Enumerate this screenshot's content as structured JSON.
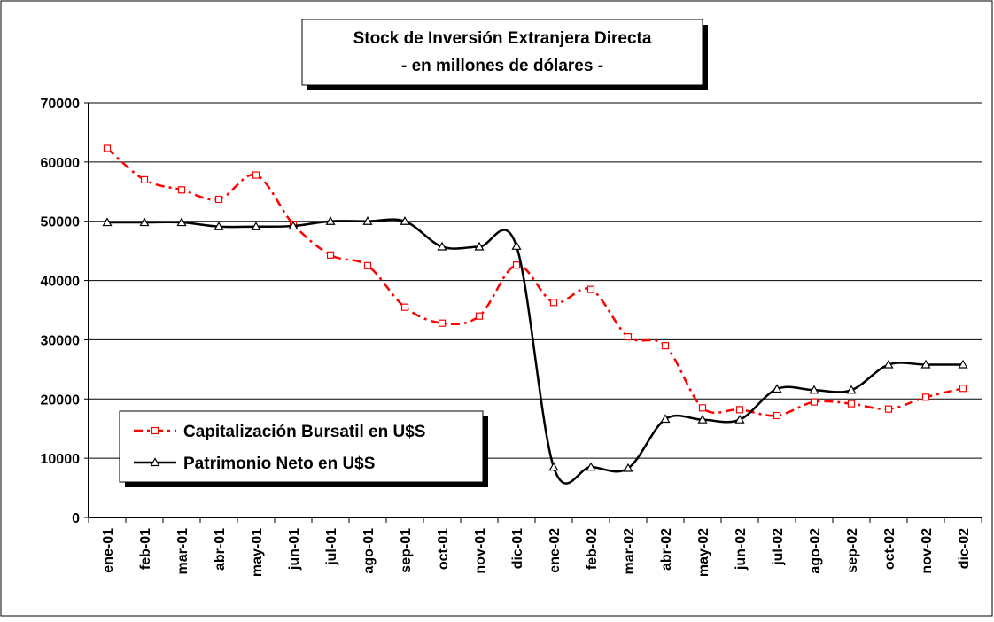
{
  "chart_data": {
    "type": "line",
    "title": "Stock de Inversión Extranjera Directa",
    "subtitle": "-  en millones de dólares  -",
    "categories": [
      "ene-01",
      "feb-01",
      "mar-01",
      "abr-01",
      "may-01",
      "jun-01",
      "jul-01",
      "ago-01",
      "sep-01",
      "oct-01",
      "nov-01",
      "dic-01",
      "ene-02",
      "feb-02",
      "mar-02",
      "abr-02",
      "may-02",
      "jun-02",
      "jul-02",
      "ago-02",
      "sep-02",
      "oct-02",
      "nov-02",
      "dic-02"
    ],
    "series": [
      {
        "name": "Capitalización Bursatil en U$S",
        "color": "#ff0000",
        "marker": "square",
        "dashed": true,
        "values": [
          62300,
          57000,
          55300,
          53700,
          57800,
          49500,
          44300,
          42500,
          35500,
          32800,
          34000,
          42600,
          36300,
          38500,
          30500,
          29000,
          18500,
          18200,
          17200,
          19500,
          19200,
          18300,
          20300,
          21800
        ]
      },
      {
        "name": "Patrimonio Neto en U$S",
        "color": "#000000",
        "marker": "triangle",
        "dashed": false,
        "values": [
          49800,
          49800,
          49800,
          49100,
          49100,
          49200,
          50000,
          50000,
          50000,
          45700,
          45700,
          45800,
          8500,
          8500,
          8300,
          16600,
          16500,
          16500,
          21700,
          21500,
          21500,
          25800,
          25800,
          25800
        ]
      }
    ],
    "ylim": [
      0,
      70000
    ],
    "yticks": [
      0,
      10000,
      20000,
      30000,
      40000,
      50000,
      60000,
      70000
    ],
    "grid": true,
    "legend": "lower-left"
  }
}
